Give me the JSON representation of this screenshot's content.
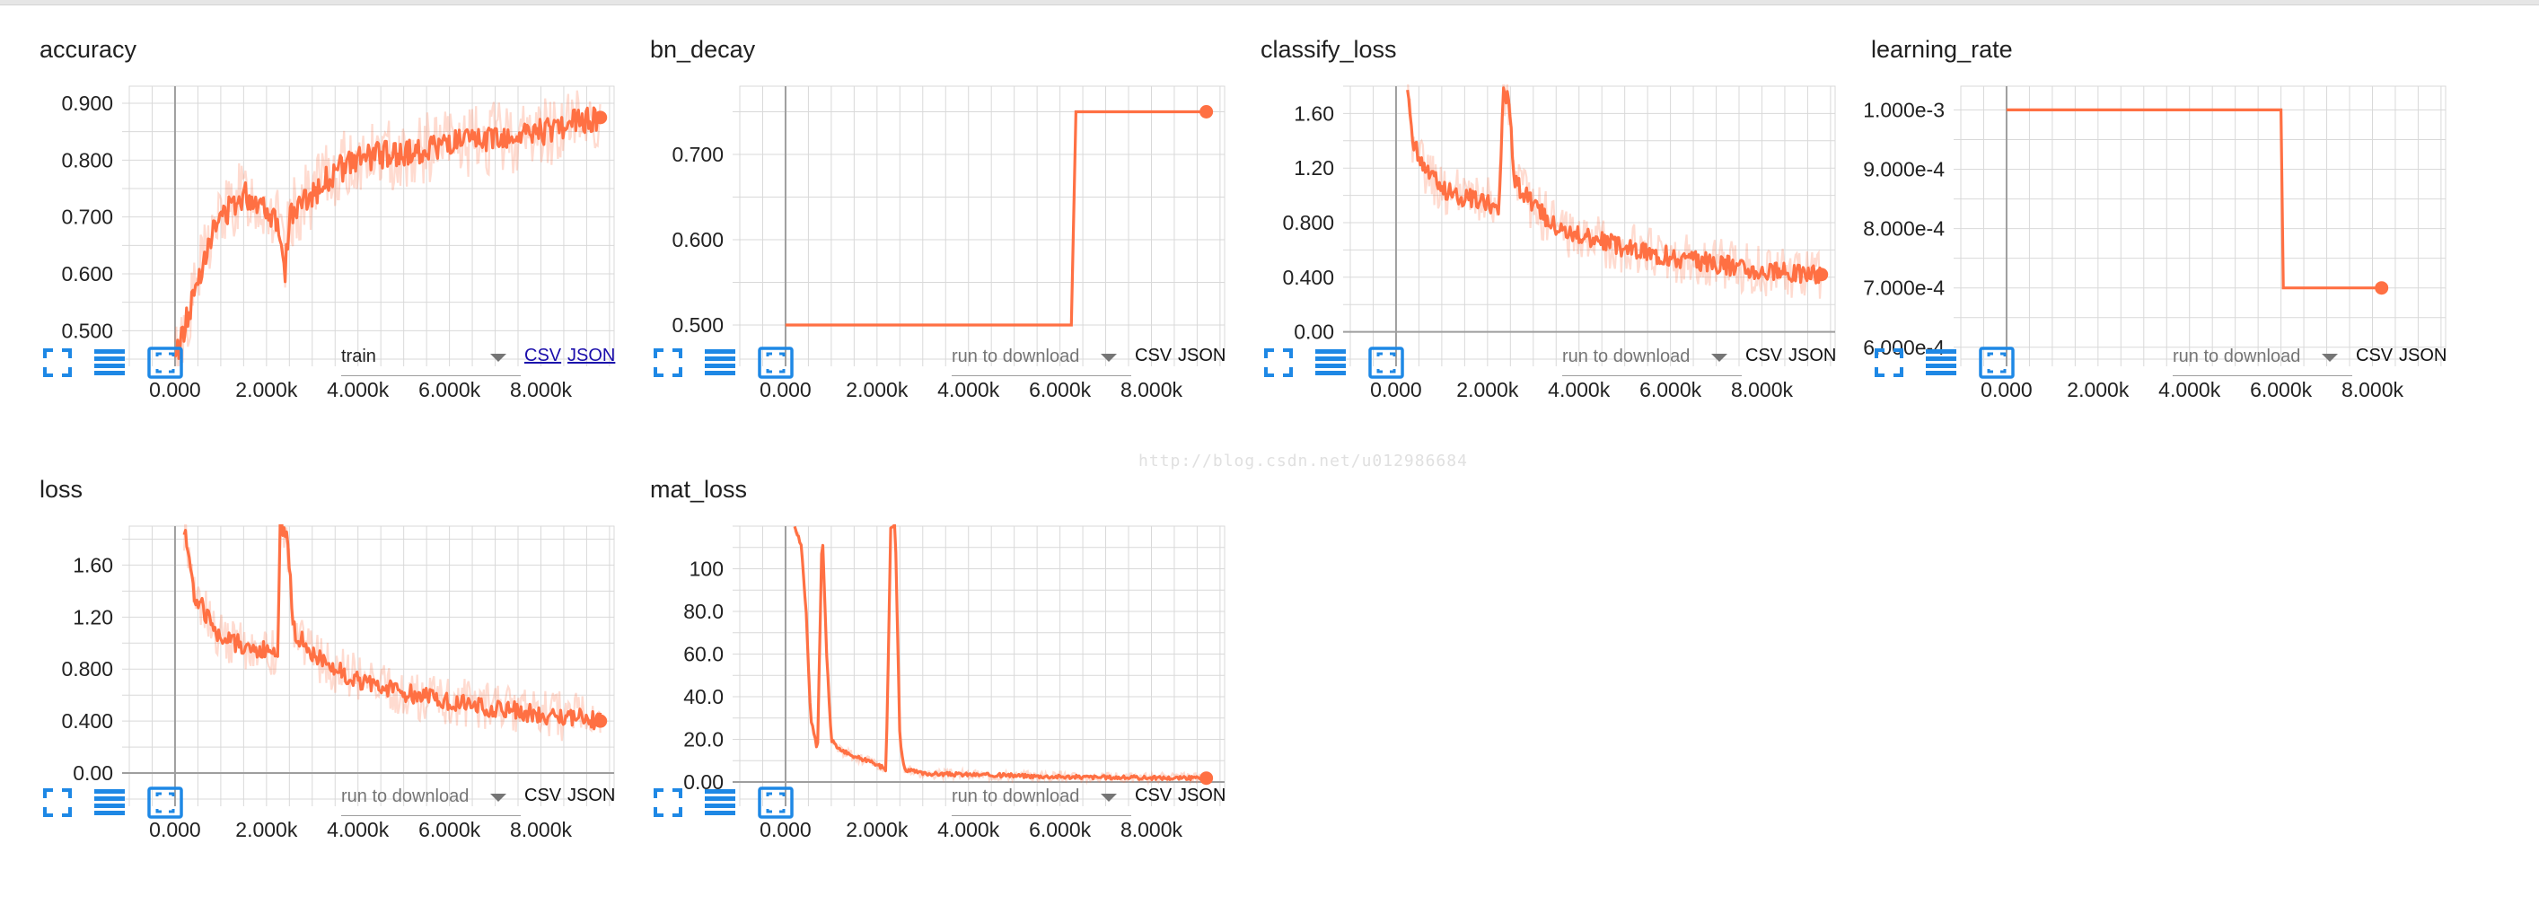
{
  "theme": {
    "accent": "#ff7043",
    "grid": "#d9d9d9",
    "axis": "#9e9e9e",
    "icon": "#1e88e5"
  },
  "watermark": "http://blog.csdn.net/u012986684",
  "cards": [
    {
      "title": "accuracy",
      "controls": {
        "run_label": "train",
        "run_is_placeholder": false,
        "csv": "CSV",
        "json": "JSON",
        "links_underlined": true
      },
      "chart_data": {
        "type": "line",
        "title": "accuracy",
        "xlim": [
          -1000,
          9600
        ],
        "ylim": [
          0.45,
          0.93
        ],
        "xticks": [
          "0.000",
          "2.000k",
          "4.000k",
          "6.000k",
          "8.000k"
        ],
        "yticks": [
          "0.500",
          "0.600",
          "0.700",
          "0.800",
          "0.900"
        ],
        "smoothed": [
          [
            0,
            0.45
          ],
          [
            300,
            0.53
          ],
          [
            700,
            0.65
          ],
          [
            1000,
            0.7
          ],
          [
            1500,
            0.74
          ],
          [
            2000,
            0.72
          ],
          [
            2300,
            0.68
          ],
          [
            2400,
            0.6
          ],
          [
            2500,
            0.7
          ],
          [
            3000,
            0.74
          ],
          [
            3500,
            0.78
          ],
          [
            4000,
            0.8
          ],
          [
            4500,
            0.81
          ],
          [
            5000,
            0.81
          ],
          [
            5500,
            0.82
          ],
          [
            6000,
            0.83
          ],
          [
            6500,
            0.83
          ],
          [
            7000,
            0.84
          ],
          [
            7500,
            0.84
          ],
          [
            8000,
            0.85
          ],
          [
            8500,
            0.86
          ],
          [
            9000,
            0.87
          ],
          [
            9300,
            0.875
          ]
        ],
        "last_point": [
          9300,
          0.875
        ],
        "noise_amplitude": 0.04
      }
    },
    {
      "title": "bn_decay",
      "controls": {
        "run_label": "run to download",
        "run_is_placeholder": true,
        "csv": "CSV",
        "json": "JSON",
        "links_underlined": false
      },
      "chart_data": {
        "type": "line",
        "title": "bn_decay",
        "xlim": [
          -1000,
          9600
        ],
        "ylim": [
          0.46,
          0.78
        ],
        "xticks": [
          "0.000",
          "2.000k",
          "4.000k",
          "6.000k",
          "8.000k"
        ],
        "yticks": [
          "0.500",
          "0.600",
          "0.700"
        ],
        "smoothed": [
          [
            0,
            0.5
          ],
          [
            6250,
            0.5
          ],
          [
            6350,
            0.75
          ],
          [
            9200,
            0.75
          ]
        ],
        "last_point": [
          9200,
          0.75
        ],
        "noise_amplitude": 0
      }
    },
    {
      "title": "classify_loss",
      "controls": {
        "run_label": "run to download",
        "run_is_placeholder": true,
        "csv": "CSV",
        "json": "JSON",
        "links_underlined": false
      },
      "chart_data": {
        "type": "line",
        "title": "classify_loss",
        "xlim": [
          -1000,
          9600
        ],
        "ylim": [
          -0.2,
          1.8
        ],
        "xticks": [
          "0.000",
          "2.000k",
          "4.000k",
          "6.000k",
          "8.000k"
        ],
        "yticks": [
          "0.00",
          "0.400",
          "0.800",
          "1.20",
          "1.60"
        ],
        "smoothed": [
          [
            250,
            1.8
          ],
          [
            350,
            1.4
          ],
          [
            600,
            1.2
          ],
          [
            1000,
            1.05
          ],
          [
            1500,
            0.98
          ],
          [
            2000,
            0.95
          ],
          [
            2250,
            0.9
          ],
          [
            2350,
            1.8
          ],
          [
            2450,
            1.7
          ],
          [
            2600,
            1.1
          ],
          [
            3000,
            0.92
          ],
          [
            3500,
            0.78
          ],
          [
            4000,
            0.7
          ],
          [
            5000,
            0.62
          ],
          [
            6000,
            0.55
          ],
          [
            7000,
            0.5
          ],
          [
            8000,
            0.45
          ],
          [
            9000,
            0.43
          ],
          [
            9300,
            0.42
          ]
        ],
        "last_point": [
          9300,
          0.42
        ],
        "noise_amplitude": 0.12
      }
    },
    {
      "title": "learning_rate",
      "controls": {
        "run_label": "run to download",
        "run_is_placeholder": true,
        "csv": "CSV",
        "json": "JSON",
        "links_underlined": false
      },
      "chart_data": {
        "type": "line",
        "title": "learning_rate",
        "xlim": [
          -1000,
          9600
        ],
        "ylim": [
          0.00058,
          0.00104
        ],
        "xticks": [
          "0.000",
          "2.000k",
          "4.000k",
          "6.000k",
          "8.000k"
        ],
        "yticks": [
          "6.000e-4",
          "7.000e-4",
          "8.000e-4",
          "9.000e-4",
          "1.000e-3"
        ],
        "smoothed": [
          [
            0,
            0.001
          ],
          [
            6000,
            0.001
          ],
          [
            6050,
            0.0007
          ],
          [
            8200,
            0.0007
          ]
        ],
        "last_point": [
          8200,
          0.0007
        ],
        "noise_amplitude": 0
      }
    },
    {
      "title": "loss",
      "controls": {
        "run_label": "run to download",
        "run_is_placeholder": true,
        "csv": "CSV",
        "json": "JSON",
        "links_underlined": false
      },
      "chart_data": {
        "type": "line",
        "title": "loss",
        "xlim": [
          -1000,
          9600
        ],
        "ylim": [
          -0.2,
          1.9
        ],
        "xticks": [
          "0.000",
          "2.000k",
          "4.000k",
          "6.000k",
          "8.000k"
        ],
        "yticks": [
          "0.00",
          "0.400",
          "0.800",
          "1.20",
          "1.60"
        ],
        "smoothed": [
          [
            200,
            1.9
          ],
          [
            400,
            1.4
          ],
          [
            700,
            1.2
          ],
          [
            1000,
            1.05
          ],
          [
            1500,
            0.98
          ],
          [
            2000,
            0.95
          ],
          [
            2250,
            0.9
          ],
          [
            2300,
            1.9
          ],
          [
            2450,
            1.8
          ],
          [
            2600,
            1.1
          ],
          [
            3000,
            0.92
          ],
          [
            3500,
            0.8
          ],
          [
            4000,
            0.72
          ],
          [
            5000,
            0.62
          ],
          [
            6000,
            0.55
          ],
          [
            7000,
            0.5
          ],
          [
            8000,
            0.45
          ],
          [
            9000,
            0.42
          ],
          [
            9300,
            0.4
          ]
        ],
        "last_point": [
          9300,
          0.4
        ],
        "noise_amplitude": 0.12
      }
    },
    {
      "title": "mat_loss",
      "controls": {
        "run_label": "run to download",
        "run_is_placeholder": true,
        "csv": "CSV",
        "json": "JSON",
        "links_underlined": false
      },
      "chart_data": {
        "type": "line",
        "title": "mat_loss",
        "xlim": [
          -1000,
          9600
        ],
        "ylim": [
          -8,
          120
        ],
        "xticks": [
          "0.000",
          "2.000k",
          "4.000k",
          "6.000k",
          "8.000k"
        ],
        "yticks": [
          "0.00",
          "20.0",
          "40.0",
          "60.0",
          "80.0",
          "100"
        ],
        "smoothed": [
          [
            200,
            120
          ],
          [
            350,
            110
          ],
          [
            450,
            80
          ],
          [
            550,
            30
          ],
          [
            700,
            15
          ],
          [
            800,
            120
          ],
          [
            900,
            60
          ],
          [
            1000,
            20
          ],
          [
            1200,
            15
          ],
          [
            1500,
            12
          ],
          [
            1800,
            10
          ],
          [
            2000,
            8
          ],
          [
            2200,
            6
          ],
          [
            2300,
            120
          ],
          [
            2400,
            120
          ],
          [
            2500,
            20
          ],
          [
            2600,
            6
          ],
          [
            3000,
            4
          ],
          [
            4000,
            3.5
          ],
          [
            5000,
            3
          ],
          [
            6000,
            2.5
          ],
          [
            7000,
            2.2
          ],
          [
            8000,
            2
          ],
          [
            9000,
            1.8
          ],
          [
            9200,
            1.8
          ]
        ],
        "last_point": [
          9200,
          1.8
        ],
        "noise_amplitude": 1.5
      }
    }
  ]
}
